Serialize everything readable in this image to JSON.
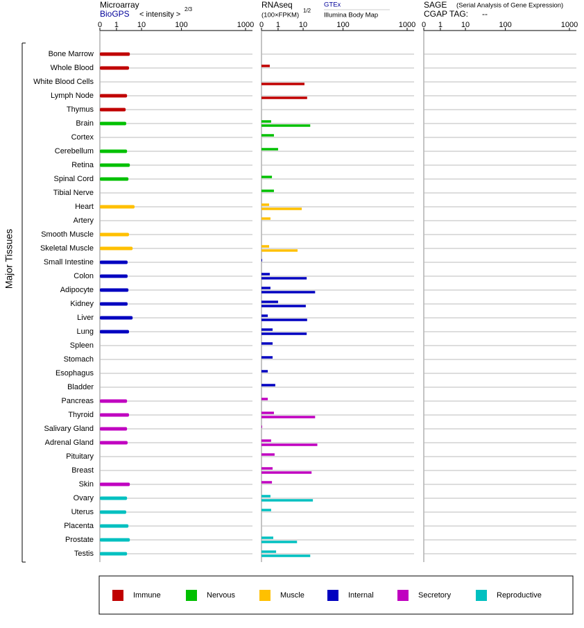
{
  "chart_data": {
    "type": "bar",
    "orientation": "horizontal",
    "y_axis_label": "Major Tissues",
    "groups": [
      {
        "name": "Immune",
        "color": "#c00000",
        "categories": [
          "Bone Marrow",
          "Whole Blood",
          "White Blood Cells",
          "Lymph Node",
          "Thymus"
        ]
      },
      {
        "name": "Nervous",
        "color": "#00c000",
        "categories": [
          "Brain",
          "Cortex",
          "Cerebellum",
          "Retina",
          "Spinal Cord",
          "Tibial Nerve"
        ]
      },
      {
        "name": "Muscle",
        "color": "#ffc000",
        "categories": [
          "Heart",
          "Artery",
          "Smooth Muscle",
          "Skeletal Muscle"
        ]
      },
      {
        "name": "Internal",
        "color": "#0000c0",
        "categories": [
          "Small Intestine",
          "Colon",
          "Adipocyte",
          "Kidney",
          "Liver",
          "Lung",
          "Spleen",
          "Stomach",
          "Esophagus",
          "Bladder"
        ]
      },
      {
        "name": "Secretory",
        "color": "#c000c0",
        "categories": [
          "Pancreas",
          "Thyroid",
          "Salivary Gland",
          "Adrenal Gland",
          "Pituitary",
          "Breast",
          "Skin"
        ]
      },
      {
        "name": "Reproductive",
        "color": "#00c0c0",
        "categories": [
          "Ovary",
          "Uterus",
          "Placenta",
          "Prostate",
          "Testis"
        ]
      }
    ],
    "panels": [
      {
        "title": "Microarray",
        "unit_label": "< intensity >",
        "unit_exponent": "2/3",
        "xlim": [
          0,
          1000
        ],
        "xticks": [
          0,
          1,
          10,
          100,
          1000
        ],
        "series": [
          {
            "name": "BioGPS",
            "values": [
              5.8,
              5.5,
              null,
              4.8,
              4.3,
              4.5,
              null,
              4.8,
              5.8,
              5.3,
              null,
              7.5,
              null,
              5.5,
              6.8,
              5.0,
              5.0,
              5.3,
              5.0,
              6.8,
              5.5,
              null,
              null,
              null,
              null,
              4.8,
              5.5,
              4.8,
              5.0,
              null,
              null,
              5.8,
              4.8,
              4.5,
              5.3,
              5.8,
              4.8
            ]
          }
        ]
      },
      {
        "title": "RNAseq",
        "unit_label": "(100×FPKM)",
        "unit_exponent": "1/2",
        "xlim": [
          0,
          1000
        ],
        "xticks": [
          0,
          1,
          10,
          100,
          1000
        ],
        "series": [
          {
            "name": "GTEx",
            "values": [
              null,
              0.5,
              null,
              null,
              null,
              0.58,
              0.75,
              1,
              null,
              0.63,
              0.75,
              0.46,
              0.54,
              null,
              0.46,
              0.04,
              0.5,
              0.54,
              1,
              0.38,
              0.67,
              0.67,
              0.67,
              0.38,
              0.83,
              0.38,
              0.75,
              0.04,
              0.58,
              0.79,
              0.67,
              0.63,
              0.54,
              0.58,
              null,
              0.71,
              0.88
            ]
          },
          {
            "name": "Illumina Body Map",
            "values": [
              null,
              null,
              13,
              19,
              null,
              26,
              null,
              null,
              null,
              null,
              null,
              9.5,
              null,
              null,
              8,
              null,
              18,
              37,
              16,
              19,
              18,
              null,
              null,
              null,
              null,
              null,
              37,
              null,
              42,
              null,
              29,
              null,
              32,
              null,
              null,
              7.8,
              26
            ]
          }
        ]
      },
      {
        "title": "SAGE",
        "subtitle": "(Serial Analysis of Gene Expression)",
        "tag_label": "CGAP TAG:",
        "tag": "--",
        "xlim": [
          0,
          1000
        ],
        "xticks": [
          0,
          1,
          10,
          100,
          1000
        ],
        "series": []
      }
    ]
  }
}
